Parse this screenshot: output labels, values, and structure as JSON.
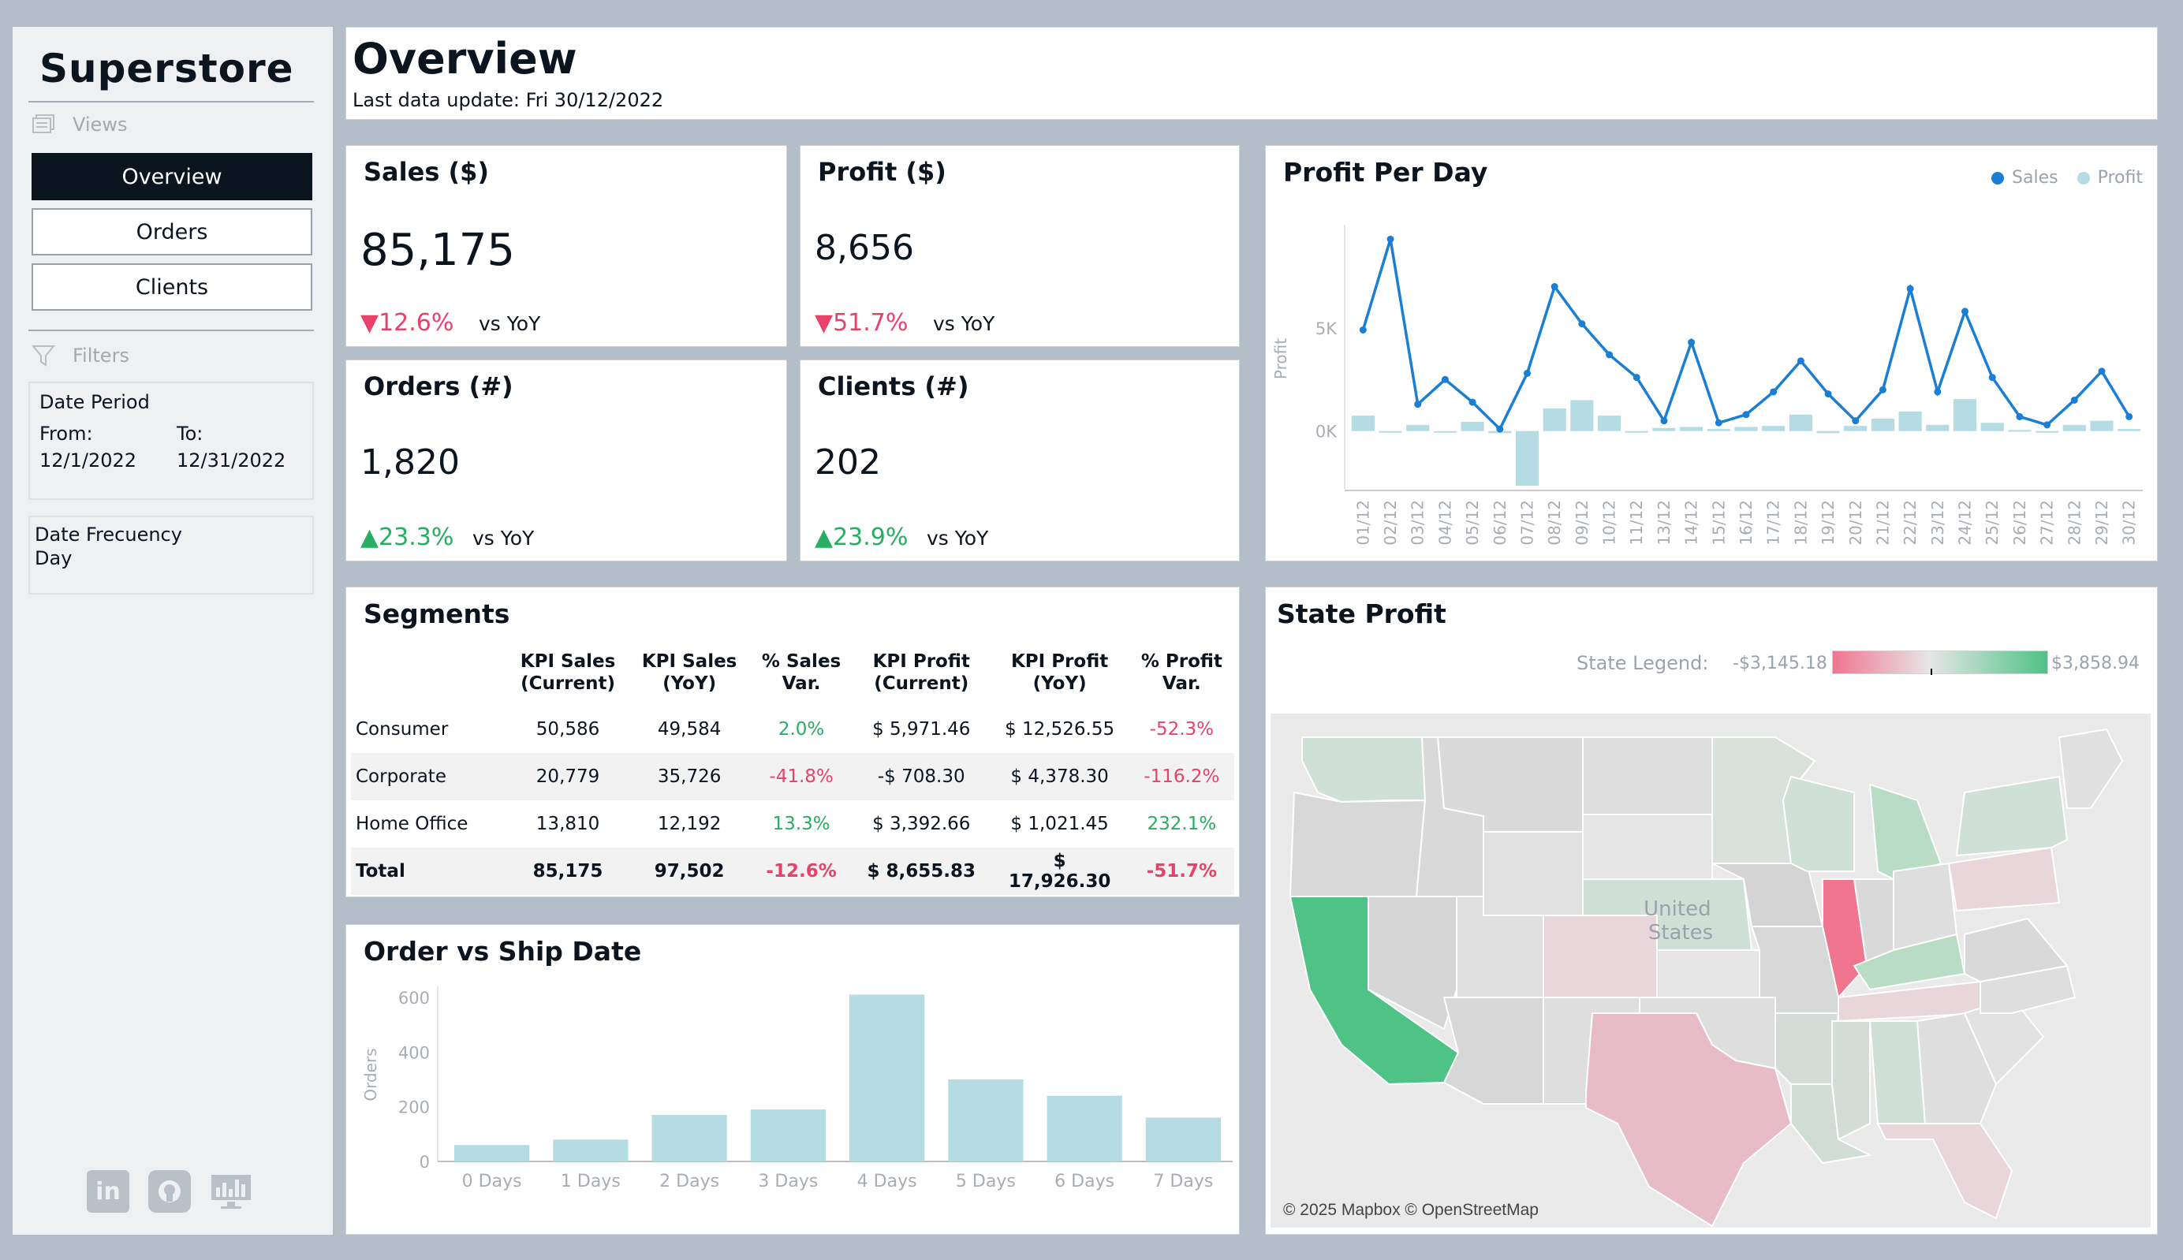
{
  "sidebar": {
    "brand": "Superstore",
    "views_label": "Views",
    "nav": [
      {
        "label": "Overview",
        "active": true
      },
      {
        "label": "Orders",
        "active": false
      },
      {
        "label": "Clients",
        "active": false
      }
    ],
    "filters_label": "Filters",
    "date_period": {
      "label": "Date Period",
      "from_label": "From:",
      "from_value": "12/1/2022",
      "to_label": "To:",
      "to_value": "12/31/2022"
    },
    "date_frequency": {
      "label": "Date Frecuency",
      "value": "Day"
    },
    "social_icons": [
      "linkedin-icon",
      "github-icon",
      "tableau-profile-icon"
    ]
  },
  "header": {
    "title": "Overview",
    "last_update": "Last data update: Fri 30/12/2022"
  },
  "kpis": {
    "sales": {
      "title": "Sales ($)",
      "value": "85,175",
      "delta": "▼12.6%",
      "yoy": "vs YoY"
    },
    "profit": {
      "title": "Profit ($)",
      "value": "8,656",
      "delta": "▼51.7%",
      "yoy": "vs YoY"
    },
    "orders": {
      "title": "Orders (#)",
      "value": "1,820",
      "delta": "▲23.3%",
      "yoy": "vs YoY"
    },
    "clients": {
      "title": "Clients (#)",
      "value": "202",
      "delta": "▲23.9%",
      "yoy": "vs YoY"
    }
  },
  "colors": {
    "negative": "#e8426a",
    "positive": "#27ae60",
    "sales_line": "#1a7fd4",
    "profit_bar": "#b5dbe3",
    "map_low": "#f0758f",
    "map_high": "#4fc285"
  },
  "segments": {
    "title": "Segments",
    "columns": [
      "",
      "KPI Sales\n(Current)",
      "KPI Sales\n(YoY)",
      "% Sales\nVar.",
      "KPI Profit\n(Current)",
      "KPI Profit\n(YoY)",
      "% Profit\nVar."
    ],
    "rows": [
      {
        "segment": "Consumer",
        "sales_cur": "50,586",
        "sales_yoy": "49,584",
        "sales_var": "2.0%",
        "profit_cur": "$ 5,971.46",
        "profit_yoy": "$ 12,526.55",
        "profit_var": "-52.3%"
      },
      {
        "segment": "Corporate",
        "sales_cur": "20,779",
        "sales_yoy": "35,726",
        "sales_var": "-41.8%",
        "profit_cur": "-$ 708.30",
        "profit_yoy": "$ 4,378.30",
        "profit_var": "-116.2%"
      },
      {
        "segment": "Home Office",
        "sales_cur": "13,810",
        "sales_yoy": "12,192",
        "sales_var": "13.3%",
        "profit_cur": "$ 3,392.66",
        "profit_yoy": "$ 1,021.45",
        "profit_var": "232.1%"
      }
    ],
    "total": {
      "segment": "Total",
      "sales_cur": "85,175",
      "sales_yoy": "97,502",
      "sales_var": "-12.6%",
      "profit_cur": "$ 8,655.83",
      "profit_yoy": "$\n17,926.30",
      "profit_var": "-51.7%"
    }
  },
  "state_profit": {
    "title": "State Profit",
    "legend_label": "State Legend:",
    "legend_min": "-$3,145.18",
    "legend_max": "$3,858.94",
    "map_label": "United\nStates",
    "attribution": "© 2025 Mapbox © OpenStreetMap"
  },
  "chart_data": [
    {
      "type": "line",
      "title": "Profit Per Day",
      "legend": [
        "Sales",
        "Profit"
      ],
      "ylabel": "Profit",
      "y_ticks": [
        "5K",
        "0K"
      ],
      "categories": [
        "01/12",
        "02/12",
        "03/12",
        "04/12",
        "05/12",
        "06/12",
        "07/12",
        "08/12",
        "09/12",
        "10/12",
        "11/12",
        "13/12",
        "14/12",
        "15/12",
        "16/12",
        "17/12",
        "18/12",
        "19/12",
        "20/12",
        "21/12",
        "22/12",
        "23/12",
        "24/12",
        "25/12",
        "26/12",
        "27/12",
        "28/12",
        "29/12",
        "30/12"
      ],
      "series": [
        {
          "name": "Sales",
          "values": [
            4900,
            9300,
            1300,
            2500,
            1400,
            100,
            2800,
            7000,
            5200,
            3700,
            2600,
            500,
            4300,
            400,
            800,
            1900,
            3400,
            1800,
            500,
            2000,
            6900,
            1900,
            5800,
            2600,
            700,
            300,
            1500,
            2900,
            700
          ]
        },
        {
          "name": "Profit",
          "values": [
            750,
            -50,
            300,
            -50,
            450,
            -100,
            -2650,
            1100,
            1500,
            750,
            -50,
            150,
            200,
            100,
            200,
            250,
            800,
            -100,
            250,
            600,
            950,
            300,
            1550,
            400,
            50,
            -50,
            300,
            500,
            100
          ]
        }
      ],
      "ylim": [
        -2800,
        10000
      ]
    },
    {
      "type": "bar",
      "title": "Order vs Ship Date",
      "ylabel": "Orders",
      "y_ticks": [
        0,
        200,
        400,
        600
      ],
      "categories": [
        "0 Days",
        "1 Days",
        "2 Days",
        "3 Days",
        "4 Days",
        "5 Days",
        "6 Days",
        "7 Days"
      ],
      "values": [
        60,
        80,
        170,
        190,
        610,
        300,
        240,
        160
      ],
      "ylim": [
        0,
        640
      ]
    }
  ]
}
